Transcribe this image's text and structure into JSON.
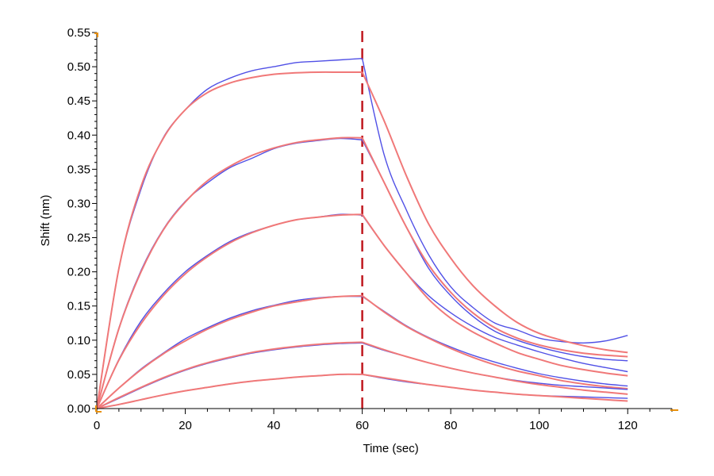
{
  "chart_data": {
    "type": "line",
    "title": "",
    "xlabel": "Time (sec)",
    "ylabel": "Shift (nm)",
    "xlim": [
      0,
      130
    ],
    "ylim": [
      0,
      0.55
    ],
    "xticks": [
      0,
      20,
      40,
      60,
      80,
      100,
      120
    ],
    "yticks": [
      0.0,
      0.05,
      0.1,
      0.15,
      0.2,
      0.25,
      0.3,
      0.35,
      0.4,
      0.45,
      0.5,
      0.55
    ],
    "ytick_labels": [
      "0.00",
      "0.05",
      "0.10",
      "0.15",
      "0.20",
      "0.25",
      "0.30",
      "0.35",
      "0.40",
      "0.45",
      "0.50",
      "0.55"
    ],
    "dissociation_start": 60,
    "grid": false,
    "colors": {
      "measured": "#5050e6",
      "fit": "#f07878",
      "marker": "#c0181e",
      "axis": "#000000",
      "accent": "#e8900c"
    },
    "x": [
      0,
      5,
      10,
      15,
      20,
      25,
      30,
      35,
      40,
      45,
      50,
      55,
      60,
      65,
      70,
      75,
      80,
      85,
      90,
      95,
      100,
      105,
      110,
      115,
      120
    ],
    "series": [
      {
        "role": "measured",
        "values": [
          0,
          0.205,
          0.321,
          0.396,
          0.437,
          0.467,
          0.483,
          0.494,
          0.5,
          0.506,
          0.508,
          0.51,
          0.512,
          0.37,
          0.29,
          0.225,
          0.178,
          0.148,
          0.125,
          0.115,
          0.103,
          0.098,
          0.096,
          0.099,
          0.107
        ]
      },
      {
        "role": "fit",
        "values": [
          0,
          0.205,
          0.325,
          0.395,
          0.437,
          0.462,
          0.476,
          0.484,
          0.489,
          0.491,
          0.492,
          0.492,
          0.492,
          0.42,
          0.34,
          0.27,
          0.22,
          0.18,
          0.15,
          0.126,
          0.11,
          0.1,
          0.092,
          0.086,
          0.082
        ]
      },
      {
        "role": "measured",
        "values": [
          0,
          0.118,
          0.202,
          0.262,
          0.303,
          0.33,
          0.352,
          0.366,
          0.38,
          0.388,
          0.392,
          0.395,
          0.393,
          0.33,
          0.265,
          0.205,
          0.165,
          0.135,
          0.113,
          0.1,
          0.09,
          0.082,
          0.076,
          0.072,
          0.07
        ]
      },
      {
        "role": "fit",
        "values": [
          0,
          0.117,
          0.2,
          0.261,
          0.302,
          0.333,
          0.354,
          0.37,
          0.381,
          0.389,
          0.393,
          0.396,
          0.396,
          0.33,
          0.265,
          0.21,
          0.17,
          0.14,
          0.118,
          0.103,
          0.093,
          0.086,
          0.081,
          0.078,
          0.076
        ]
      },
      {
        "role": "measured",
        "values": [
          0,
          0.072,
          0.128,
          0.168,
          0.2,
          0.224,
          0.244,
          0.258,
          0.268,
          0.276,
          0.28,
          0.284,
          0.283,
          0.238,
          0.198,
          0.165,
          0.14,
          0.12,
          0.104,
          0.093,
          0.083,
          0.074,
          0.066,
          0.06,
          0.054
        ]
      },
      {
        "role": "fit",
        "values": [
          0,
          0.071,
          0.124,
          0.165,
          0.197,
          0.222,
          0.242,
          0.257,
          0.268,
          0.276,
          0.28,
          0.283,
          0.284,
          0.238,
          0.198,
          0.16,
          0.132,
          0.112,
          0.096,
          0.082,
          0.072,
          0.063,
          0.057,
          0.052,
          0.048
        ]
      },
      {
        "role": "measured",
        "values": [
          0,
          0.03,
          0.058,
          0.081,
          0.102,
          0.118,
          0.132,
          0.143,
          0.151,
          0.158,
          0.162,
          0.164,
          0.164,
          0.142,
          0.121,
          0.104,
          0.09,
          0.078,
          0.068,
          0.059,
          0.051,
          0.045,
          0.04,
          0.036,
          0.033
        ]
      },
      {
        "role": "fit",
        "values": [
          0,
          0.03,
          0.057,
          0.08,
          0.099,
          0.116,
          0.13,
          0.141,
          0.15,
          0.156,
          0.161,
          0.164,
          0.165,
          0.141,
          0.12,
          0.103,
          0.088,
          0.075,
          0.064,
          0.055,
          0.048,
          0.041,
          0.036,
          0.032,
          0.029
        ]
      },
      {
        "role": "measured",
        "values": [
          0,
          0.015,
          0.03,
          0.044,
          0.056,
          0.066,
          0.074,
          0.081,
          0.086,
          0.09,
          0.093,
          0.095,
          0.096,
          0.085,
          0.076,
          0.067,
          0.059,
          0.052,
          0.046,
          0.041,
          0.037,
          0.034,
          0.032,
          0.03,
          0.028
        ]
      },
      {
        "role": "fit",
        "values": [
          0,
          0.016,
          0.031,
          0.045,
          0.057,
          0.067,
          0.075,
          0.082,
          0.087,
          0.091,
          0.094,
          0.096,
          0.097,
          0.086,
          0.076,
          0.067,
          0.059,
          0.052,
          0.046,
          0.04,
          0.035,
          0.031,
          0.027,
          0.024,
          0.021
        ]
      },
      {
        "role": "measured",
        "values": [
          0,
          0.006,
          0.013,
          0.02,
          0.026,
          0.031,
          0.036,
          0.04,
          0.043,
          0.046,
          0.048,
          0.05,
          0.05,
          0.044,
          0.039,
          0.035,
          0.031,
          0.027,
          0.024,
          0.021,
          0.019,
          0.018,
          0.017,
          0.016,
          0.015
        ]
      },
      {
        "role": "fit",
        "values": [
          0,
          0.006,
          0.013,
          0.02,
          0.026,
          0.031,
          0.036,
          0.04,
          0.043,
          0.046,
          0.048,
          0.05,
          0.05,
          0.045,
          0.04,
          0.035,
          0.031,
          0.027,
          0.024,
          0.021,
          0.019,
          0.017,
          0.015,
          0.013,
          0.011
        ]
      }
    ]
  }
}
